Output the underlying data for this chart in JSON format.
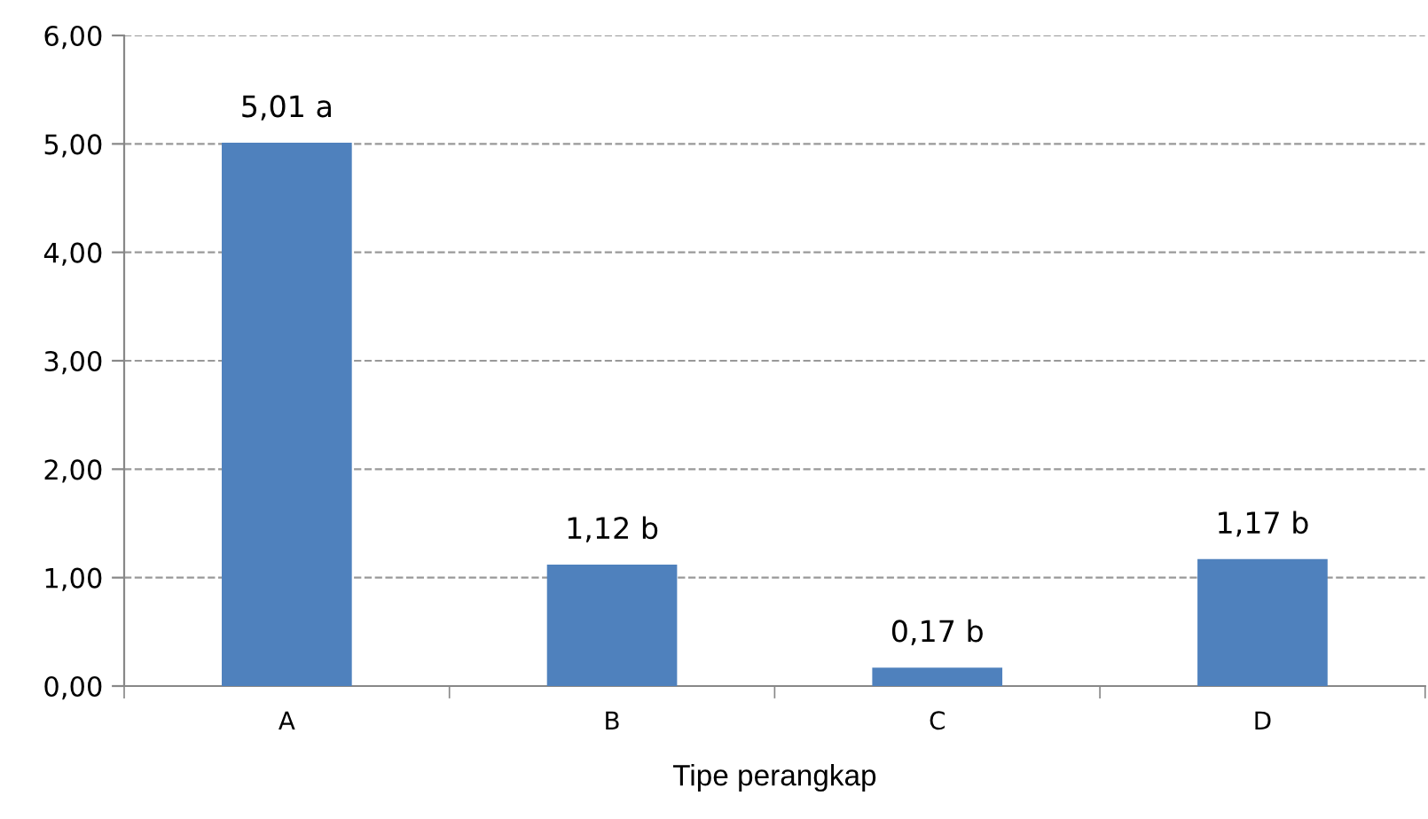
{
  "chart_data": {
    "type": "bar",
    "xlabel": "Tipe perangkap",
    "categories": [
      "A",
      "B",
      "C",
      "D"
    ],
    "values": [
      5.01,
      1.12,
      0.17,
      1.17
    ],
    "value_labels": [
      "5,01 a",
      "1,12 b",
      "0,17 b",
      "1,17 b"
    ],
    "color": "#4f81bd",
    "ylim": [
      0,
      6
    ],
    "yticks": [
      {
        "value": 0,
        "label": "0,00"
      },
      {
        "value": 1,
        "label": "1,00"
      },
      {
        "value": 2,
        "label": "2,00"
      },
      {
        "value": 3,
        "label": "3,00"
      },
      {
        "value": 4,
        "label": "4,00"
      },
      {
        "value": 5,
        "label": "5,00"
      },
      {
        "value": 6,
        "label": "6,00"
      }
    ],
    "grid": "y"
  }
}
